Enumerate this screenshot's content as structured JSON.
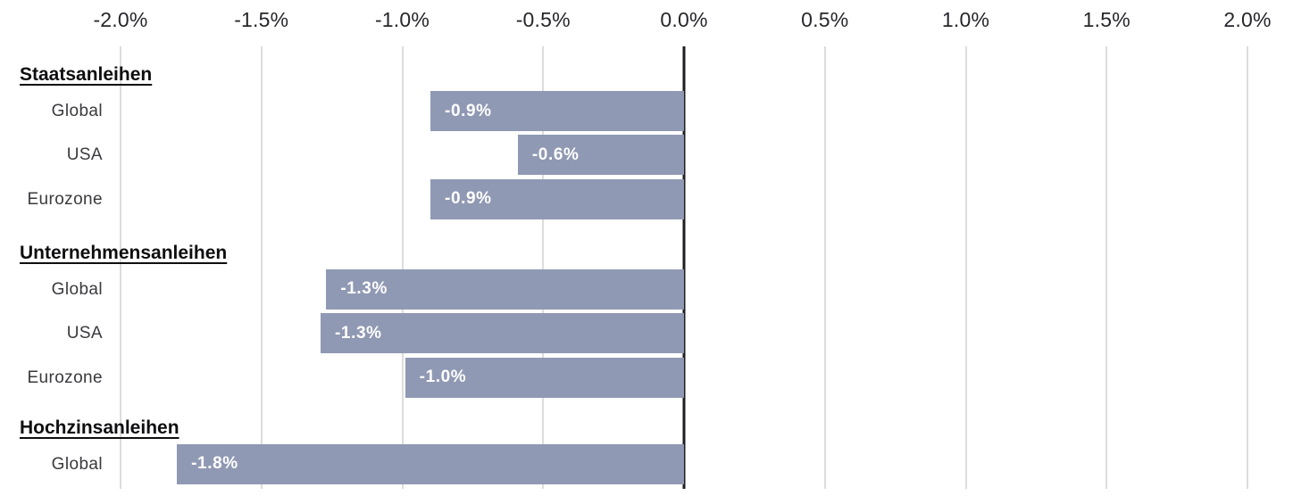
{
  "chart_data": {
    "type": "bar",
    "orientation": "horizontal",
    "unit": "%",
    "title": "",
    "xlabel": "",
    "ylabel": "",
    "xlim": [
      -2.0,
      2.0
    ],
    "x_ticks": [
      -2.0,
      -1.5,
      -1.0,
      -0.5,
      0.0,
      0.5,
      1.0,
      1.5,
      2.0
    ],
    "x_tick_labels": [
      "-2.0%",
      "-1.5%",
      "-1.0%",
      "-0.5%",
      "0.0%",
      "0.5%",
      "1.0%",
      "1.5%",
      "2.0%"
    ],
    "grid": true,
    "legend": null,
    "axis_position": "top",
    "zero_line": true,
    "groups": [
      {
        "label": "Staatsanleihen",
        "items": [
          {
            "label": "Global",
            "value": -0.9,
            "value_label": "-0.9%"
          },
          {
            "label": "USA",
            "value": -0.59,
            "value_label": "-0.6%"
          },
          {
            "label": "Eurozone",
            "value": -0.9,
            "value_label": "-0.9%"
          }
        ]
      },
      {
        "label": "Unternehmensanleihen",
        "items": [
          {
            "label": "Global",
            "value": -1.27,
            "value_label": "-1.3%"
          },
          {
            "label": "USA",
            "value": -1.29,
            "value_label": "-1.3%"
          },
          {
            "label": "Eurozone",
            "value": -0.99,
            "value_label": "-1.0%"
          }
        ]
      },
      {
        "label": "Hochzinsanleihen",
        "items": [
          {
            "label": "Global",
            "value": -1.8,
            "value_label": "-1.8%"
          }
        ]
      }
    ],
    "colors": {
      "bar": "#9099b3",
      "gridline": "#dcdcdd",
      "zero_line": "#1d1d22",
      "value_label_text": "#ffffff",
      "axis_text": "#26262b",
      "row_label_text": "#3a3a3e",
      "group_header_text": "#0e0e10"
    }
  }
}
